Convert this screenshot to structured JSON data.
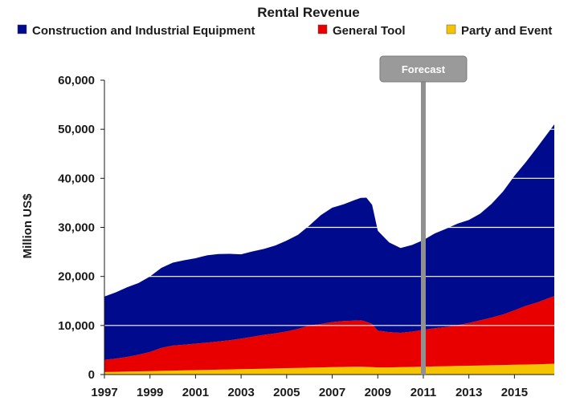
{
  "chart_data": {
    "type": "area",
    "title": "Rental Revenue",
    "ylabel": "Million US$",
    "xlabel": "",
    "stacked": true,
    "ylim": [
      0,
      60000
    ],
    "xlim": [
      1997,
      2016.75
    ],
    "yticks": [
      0,
      10000,
      20000,
      30000,
      40000,
      50000,
      60000
    ],
    "ytick_labels": [
      "0",
      "10,000",
      "20,000",
      "30,000",
      "40,000",
      "50,000",
      "60,000"
    ],
    "xticks": [
      1997,
      1999,
      2001,
      2003,
      2005,
      2007,
      2009,
      2011,
      2013,
      2015
    ],
    "xtick_labels": [
      "1997",
      "1999",
      "2001",
      "2003",
      "2005",
      "2007",
      "2009",
      "2011",
      "2013",
      "2015"
    ],
    "grid": false,
    "legend_position": "top",
    "x": [
      1997,
      1997.5,
      1998,
      1998.5,
      1999,
      1999.5,
      2000,
      2000.5,
      2001,
      2001.5,
      2002,
      2002.5,
      2003,
      2003.5,
      2004,
      2004.5,
      2005,
      2005.5,
      2006,
      2006.5,
      2007,
      2007.5,
      2008,
      2008.25,
      2008.5,
      2008.75,
      2009,
      2009.5,
      2010,
      2010.5,
      2011,
      2011.5,
      2012,
      2012.5,
      2013,
      2013.5,
      2014,
      2014.5,
      2015,
      2015.5,
      2016,
      2016.75
    ],
    "series": [
      {
        "name": "Party and Event",
        "color": "#f5c400",
        "values": [
          500,
          550,
          600,
          650,
          700,
          750,
          800,
          850,
          900,
          950,
          1000,
          1050,
          1100,
          1150,
          1200,
          1250,
          1300,
          1350,
          1400,
          1450,
          1500,
          1550,
          1600,
          1600,
          1550,
          1500,
          1450,
          1450,
          1500,
          1550,
          1600,
          1650,
          1700,
          1750,
          1800,
          1850,
          1900,
          1950,
          2000,
          2050,
          2100,
          2200
        ]
      },
      {
        "name": "General Tool",
        "color": "#e80000",
        "values": [
          2500,
          2700,
          3000,
          3400,
          3900,
          4700,
          5100,
          5250,
          5400,
          5550,
          5750,
          5950,
          6200,
          6550,
          6900,
          7150,
          7500,
          7950,
          8600,
          8850,
          9200,
          9350,
          9400,
          9450,
          9200,
          8800,
          7500,
          7200,
          7000,
          7200,
          7500,
          7800,
          8000,
          8300,
          8700,
          9200,
          9700,
          10300,
          11100,
          11950,
          12600,
          13800
        ]
      },
      {
        "name": "Construction and Industrial Equipment",
        "color": "#000a8c",
        "values": [
          12900,
          13500,
          14200,
          14600,
          15400,
          16300,
          16900,
          17200,
          17400,
          17800,
          17800,
          17600,
          17200,
          17400,
          17500,
          17900,
          18500,
          19200,
          20400,
          22200,
          23300,
          23800,
          24600,
          24950,
          25300,
          24300,
          20350,
          18300,
          17300,
          17650,
          18300,
          19300,
          20000,
          20700,
          21000,
          21750,
          23200,
          25050,
          27400,
          29300,
          31600,
          35000
        ]
      }
    ],
    "annotations": [
      {
        "text": "Forecast",
        "x": 2011,
        "style": "vertical-line"
      }
    ]
  },
  "colors": {
    "grid_band": "#ffffff",
    "forecast_line": "#909090",
    "forecast_box": "#9a9a9a",
    "axis": "#1a1a1a"
  }
}
